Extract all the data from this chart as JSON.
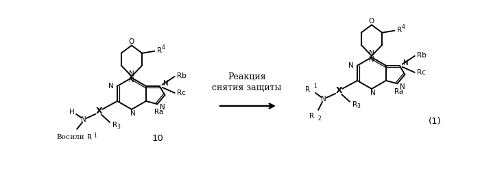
{
  "bg_color": "#ffffff",
  "reaction_label_line1": "Реакция",
  "reaction_label_line2": "снятия защиты",
  "compound_left_label": "10",
  "compound_right_label": "(1)",
  "figsize": [
    7.0,
    2.56
  ],
  "dpi": 100
}
